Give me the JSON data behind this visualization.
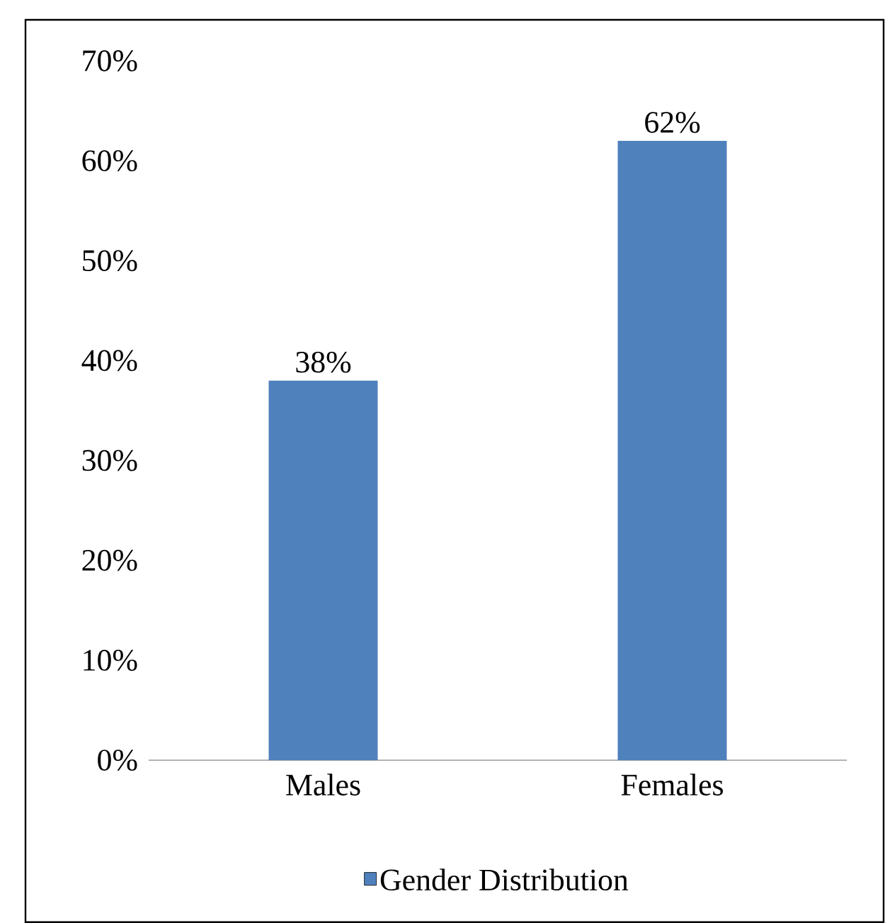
{
  "chart_data": {
    "type": "bar",
    "categories": [
      "Males",
      "Females"
    ],
    "series": [
      {
        "name": "Gender Distribution",
        "color": "#4f81bd",
        "values": [
          38,
          62
        ],
        "value_labels": [
          "38%",
          "62%"
        ]
      }
    ],
    "ylim": [
      0,
      70
    ],
    "yticks": [
      {
        "value": 0,
        "label": "0%"
      },
      {
        "value": 10,
        "label": "10%"
      },
      {
        "value": 20,
        "label": "20%"
      },
      {
        "value": 30,
        "label": "30%"
      },
      {
        "value": 40,
        "label": "40%"
      },
      {
        "value": 50,
        "label": "50%"
      },
      {
        "value": 60,
        "label": "60%"
      },
      {
        "value": 70,
        "label": "70%"
      }
    ],
    "grid": false,
    "legend": "bottom"
  }
}
